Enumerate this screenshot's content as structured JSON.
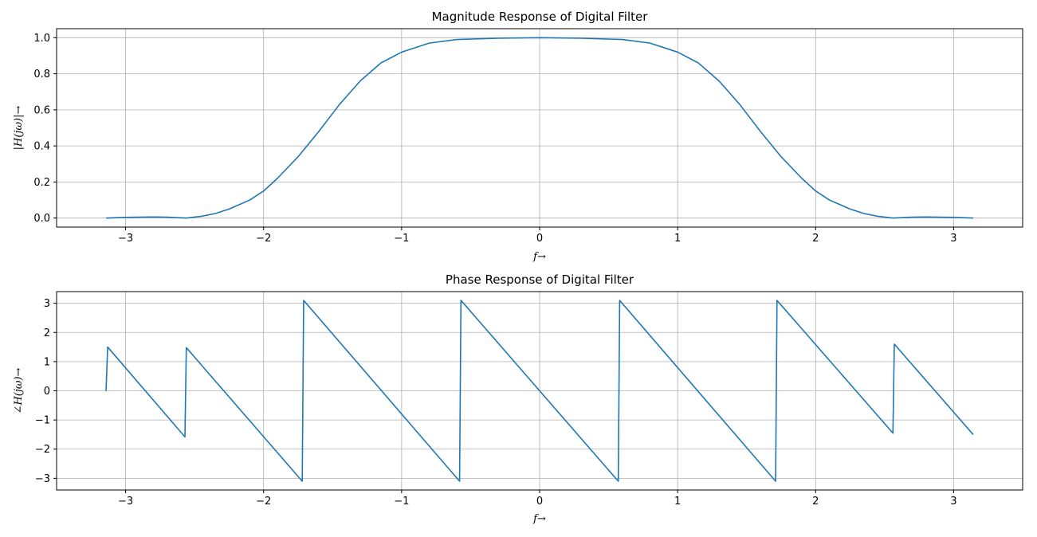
{
  "chart_data": [
    {
      "type": "line",
      "title": "Magnitude Response of Digital Filter",
      "xlabel": "f→",
      "ylabel": "|H(jω)|→",
      "xlim": [
        -3.5,
        3.5
      ],
      "ylim": [
        -0.05,
        1.05
      ],
      "xticks": [
        -3,
        -2,
        -1,
        0,
        1,
        2,
        3
      ],
      "xtick_labels": [
        "−3",
        "−2",
        "−1",
        "0",
        "1",
        "2",
        "3"
      ],
      "yticks": [
        0.0,
        0.2,
        0.4,
        0.6,
        0.8,
        1.0
      ],
      "ytick_labels": [
        "0.0",
        "0.2",
        "0.4",
        "0.6",
        "0.8",
        "1.0"
      ],
      "grid": true,
      "series": [
        {
          "color": "#1f77b4",
          "x": [
            -3.1416,
            -3.0,
            -2.8,
            -2.7,
            -2.56,
            -2.45,
            -2.35,
            -2.25,
            -2.1,
            -2.0,
            -1.9,
            -1.75,
            -1.6,
            -1.45,
            -1.3,
            -1.15,
            -1.0,
            -0.8,
            -0.6,
            -0.3,
            0.0,
            0.3,
            0.6,
            0.8,
            1.0,
            1.15,
            1.3,
            1.45,
            1.6,
            1.75,
            1.9,
            2.0,
            2.1,
            2.25,
            2.35,
            2.45,
            2.56,
            2.7,
            2.8,
            3.0,
            3.1416
          ],
          "y": [
            0.0,
            0.004,
            0.006,
            0.005,
            0.0,
            0.01,
            0.025,
            0.05,
            0.1,
            0.15,
            0.22,
            0.34,
            0.48,
            0.63,
            0.76,
            0.86,
            0.92,
            0.97,
            0.99,
            0.997,
            1.0,
            0.997,
            0.99,
            0.97,
            0.92,
            0.86,
            0.76,
            0.63,
            0.48,
            0.34,
            0.22,
            0.15,
            0.1,
            0.05,
            0.025,
            0.01,
            0.0,
            0.005,
            0.006,
            0.004,
            0.0
          ]
        }
      ]
    },
    {
      "type": "line",
      "title": "Phase Response of Digital Filter",
      "xlabel": "f→",
      "ylabel": "∠H(jω)→",
      "xlim": [
        -3.5,
        3.5
      ],
      "ylim": [
        -3.4,
        3.4
      ],
      "xticks": [
        -3,
        -2,
        -1,
        0,
        1,
        2,
        3
      ],
      "xtick_labels": [
        "−3",
        "−2",
        "−1",
        "0",
        "1",
        "2",
        "3"
      ],
      "yticks": [
        -3,
        -2,
        -1,
        0,
        1,
        2,
        3
      ],
      "ytick_labels": [
        "−3",
        "−2",
        "−1",
        "0",
        "1",
        "2",
        "3"
      ],
      "grid": true,
      "series": [
        {
          "color": "#1f77b4",
          "x": [
            -3.1416,
            -3.13,
            -2.57,
            -2.56,
            -1.72,
            -1.71,
            -0.58,
            -0.57,
            0.57,
            0.58,
            1.71,
            1.72,
            2.56,
            2.57,
            3.1416
          ],
          "y": [
            0.0,
            1.5,
            -1.58,
            1.48,
            -3.1,
            3.1,
            -3.1,
            3.1,
            -3.1,
            3.1,
            -3.1,
            3.1,
            -1.45,
            1.6,
            -1.5
          ]
        }
      ]
    }
  ]
}
